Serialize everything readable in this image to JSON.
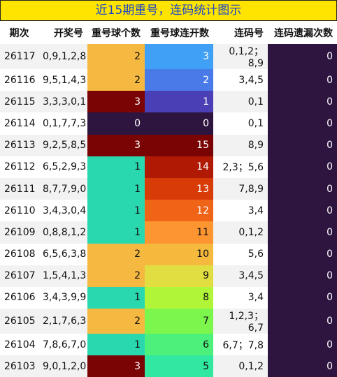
{
  "header": {
    "title": "近15期重号，连码统计图示"
  },
  "table": {
    "columns": [
      "期次",
      "开奖号",
      "重号球个数",
      "重号球连开数",
      "连码号",
      "连码遗漏次数"
    ],
    "rows": [
      [
        26117,
        "0,9,1,2,8",
        2,
        3,
        "0,1,2；8,9",
        0
      ],
      [
        26116,
        "9,5,1,4,3",
        2,
        2,
        "3,4,5",
        0
      ],
      [
        26115,
        "3,3,3,0,1",
        3,
        1,
        "0,1",
        0
      ],
      [
        26114,
        "0,1,7,7,3",
        0,
        0,
        "0,1",
        0
      ],
      [
        26113,
        "9,2,5,8,5",
        3,
        15,
        "8,9",
        0
      ],
      [
        26112,
        "6,5,2,9,3",
        1,
        14,
        "2,3；5,6",
        0
      ],
      [
        26111,
        "8,7,7,9,0",
        1,
        13,
        "7,8,9",
        0
      ],
      [
        26110,
        "3,4,3,0,4",
        1,
        12,
        "3,4",
        0
      ],
      [
        26109,
        "0,8,8,1,2",
        1,
        11,
        "0,1,2",
        0
      ],
      [
        26108,
        "6,5,6,3,8",
        2,
        10,
        "5,6",
        0
      ],
      [
        26107,
        "1,5,4,1,3",
        2,
        9,
        "3,4,5",
        0
      ],
      [
        26106,
        "3,4,3,9,9",
        1,
        8,
        "3,4",
        0
      ],
      [
        26105,
        "2,1,7,6,3",
        2,
        7,
        "1,2,3；6,7",
        0
      ],
      [
        26104,
        "7,8,6,7,0",
        1,
        6,
        "6,7；7,8",
        0
      ],
      [
        26103,
        "9,0,1,2,0",
        3,
        5,
        "0,1,2",
        0
      ]
    ],
    "cell_colors": [
      [
        "#f5b942",
        "#3fa0f5",
        "#2e1540"
      ],
      [
        "#f5b942",
        "#4a7ae8",
        "#2e1540"
      ],
      [
        "#7a0403",
        "#4a3fb5",
        "#2e1540"
      ],
      [
        "#2e1540",
        "#2e1540",
        "#2e1540"
      ],
      [
        "#7a0403",
        "#7a0403",
        "#2e1540"
      ],
      [
        "#2ad8b0",
        "#b01a05",
        "#2e1540"
      ],
      [
        "#2ad8b0",
        "#d83a08",
        "#2e1540"
      ],
      [
        "#2ad8b0",
        "#f06418",
        "#2e1540"
      ],
      [
        "#2ad8b0",
        "#fd9530",
        "#2e1540"
      ],
      [
        "#f5b942",
        "#f5b93e",
        "#2e1540"
      ],
      [
        "#f5b942",
        "#e0de40",
        "#2e1540"
      ],
      [
        "#2ad8b0",
        "#b1f538",
        "#2e1540"
      ],
      [
        "#f5b942",
        "#7cf54c",
        "#2e1540"
      ],
      [
        "#2ad8b0",
        "#4df07a",
        "#2e1540"
      ],
      [
        "#7a0403",
        "#30e8a0",
        "#2e1540"
      ]
    ]
  }
}
